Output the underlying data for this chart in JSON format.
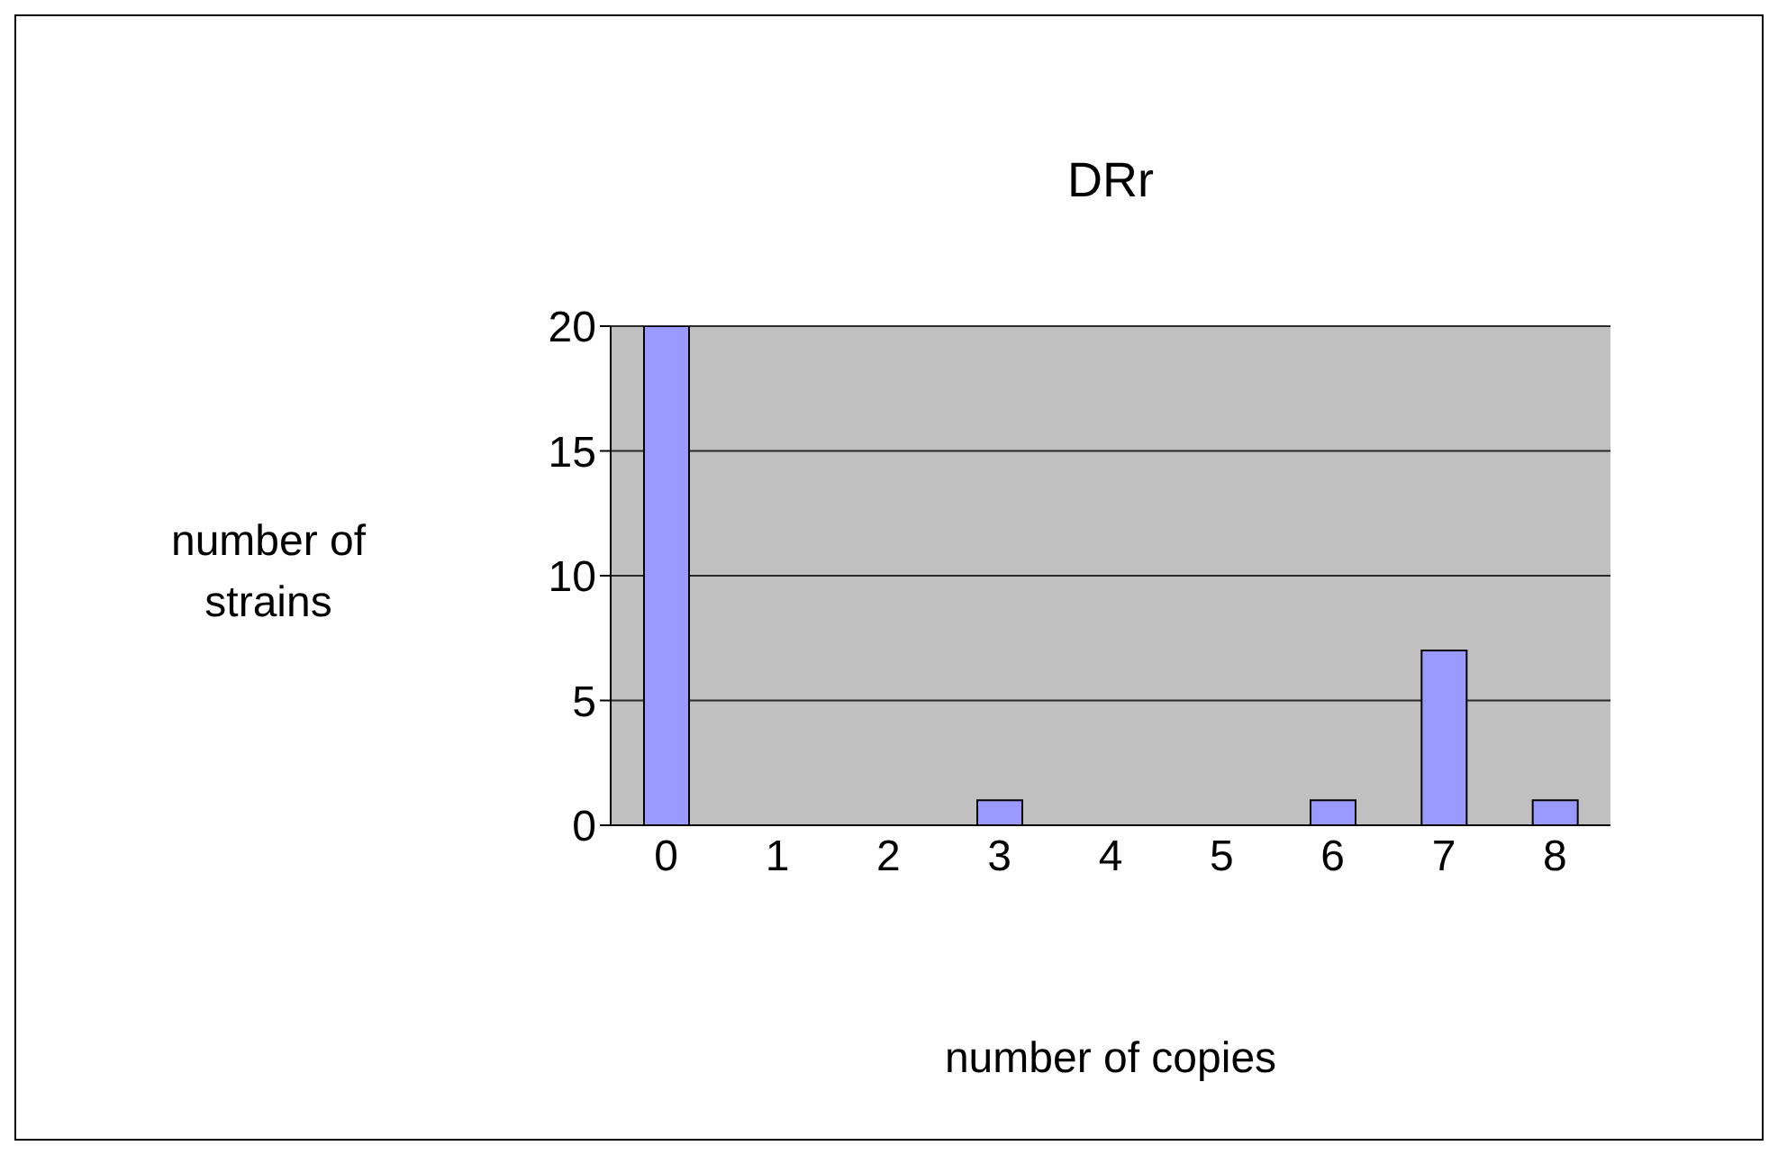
{
  "chart_data": {
    "type": "bar",
    "title": "DRr",
    "xlabel": "number of copies",
    "ylabel": "number of strains",
    "categories": [
      "0",
      "1",
      "2",
      "3",
      "4",
      "5",
      "6",
      "7",
      "8"
    ],
    "values": [
      20,
      0,
      0,
      1,
      0,
      0,
      1,
      7,
      1
    ],
    "color": "#9999ff",
    "ylim": [
      0,
      20
    ],
    "yticks": [
      0,
      5,
      10,
      15,
      20
    ],
    "grid": "y",
    "legend": false
  }
}
